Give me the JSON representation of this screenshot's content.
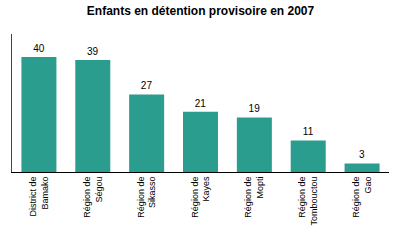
{
  "chart_data": {
    "type": "bar",
    "title": "Enfants en détention provisoire en 2007",
    "categories": [
      "District de\nBamako",
      "Région de\nSégou",
      "Région de\nSikasso",
      "Région de\nKayes",
      "Région de\nMopti",
      "Région de\nTombouctou",
      "Région de\nGao"
    ],
    "values": [
      40,
      39,
      27,
      21,
      19,
      11,
      3
    ],
    "color": "#2a9d8f",
    "ylim": [
      0,
      48
    ],
    "grid": false,
    "data_labels": true,
    "tick_labels": "x"
  }
}
